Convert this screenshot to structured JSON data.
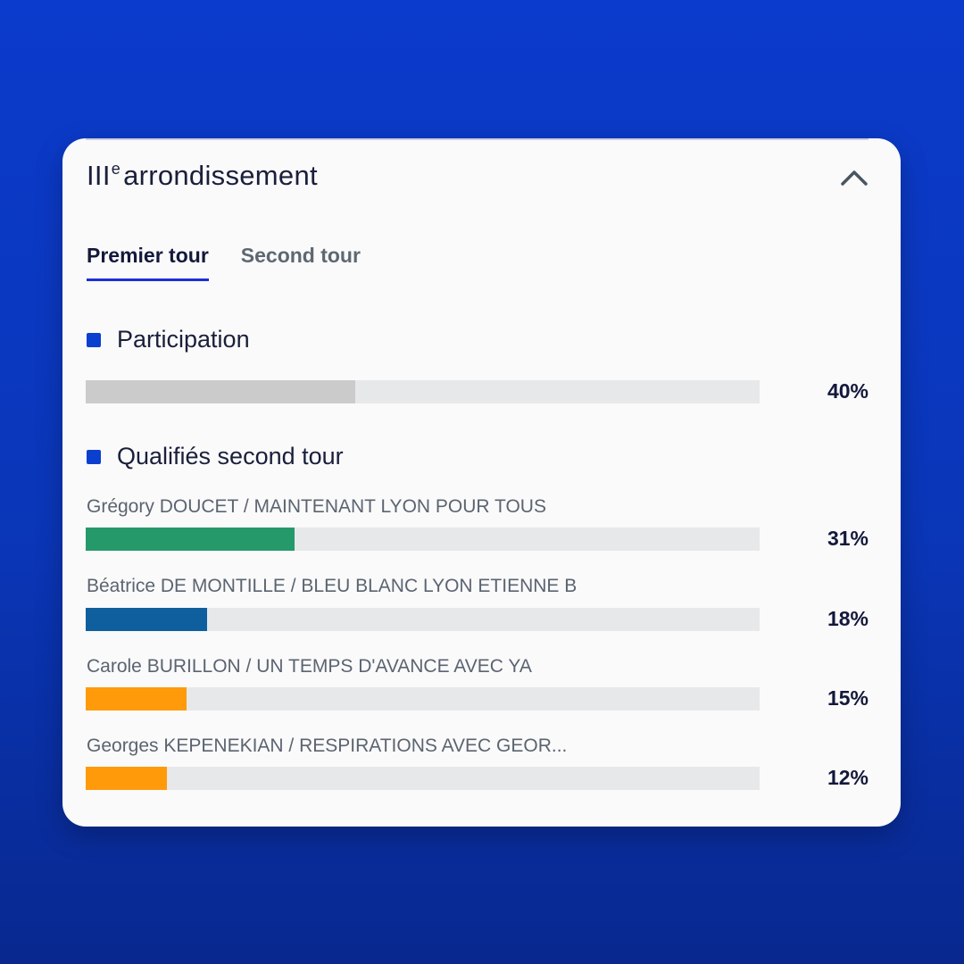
{
  "panel": {
    "title_main": "III",
    "title_sup": "e",
    "title_rest": "arrondissement",
    "collapse_icon": "chevron-up-icon"
  },
  "tabs": [
    {
      "label": "Premier tour",
      "active": true
    },
    {
      "label": "Second tour",
      "active": false
    }
  ],
  "participation": {
    "heading": "Participation",
    "percent_label": "40%",
    "value": 40,
    "color": "#cbcbcb"
  },
  "qualified": {
    "heading": "Qualifiés second tour",
    "candidates": [
      {
        "label": "Grégory DOUCET / MAINTENANT LYON POUR TOUS",
        "percent_label": "31%",
        "value": 31,
        "color": "#25996a"
      },
      {
        "label": "Béatrice DE MONTILLE / BLEU BLANC LYON ETIENNE B",
        "percent_label": "18%",
        "value": 18,
        "color": "#0f5f9e"
      },
      {
        "label": "Carole BURILLON / UN TEMPS D'AVANCE AVEC YA",
        "percent_label": "15%",
        "value": 15,
        "color": "#ff9a0a"
      },
      {
        "label": "Georges KEPENEKIAN / RESPIRATIONS AVEC GEOR...",
        "percent_label": "12%",
        "value": 12,
        "color": "#ff9a0a"
      }
    ]
  },
  "colors": {
    "accent": "#1d2fd6",
    "legend_square": "#0a3fd0",
    "track": "#e7e8ea"
  }
}
